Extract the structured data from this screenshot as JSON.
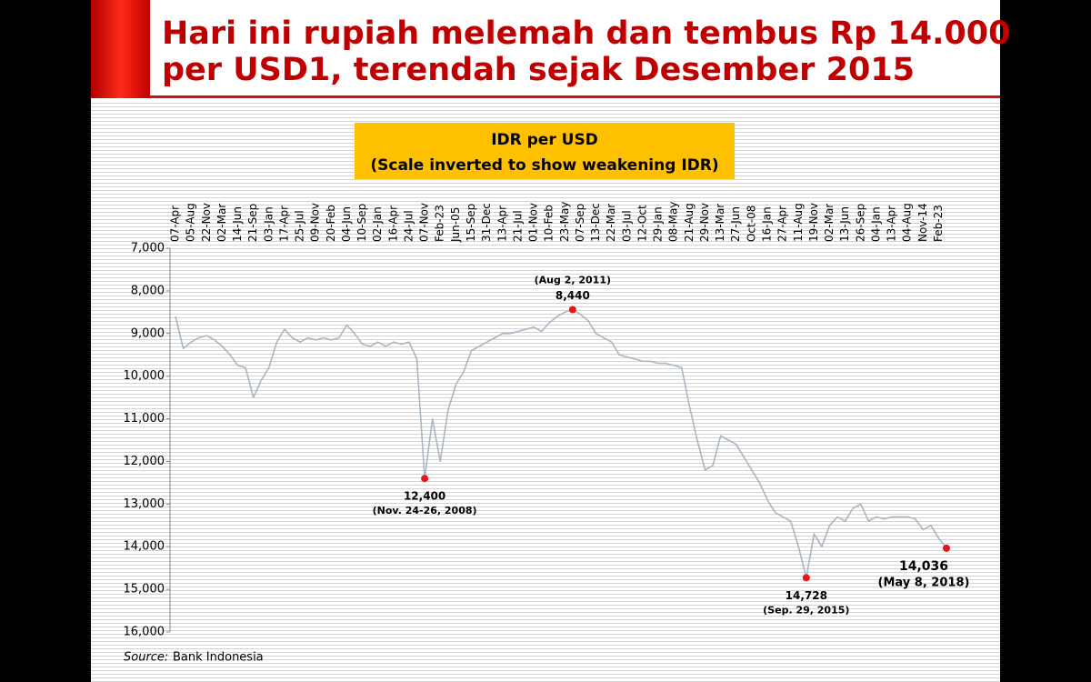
{
  "slide": {
    "title_lines": [
      "Hari ini rupiah melemah dan tembus Rp 14.000",
      "per USD1, terendah sejak Desember 2015"
    ]
  },
  "chart_data": {
    "type": "line",
    "title": "IDR per USD",
    "subtitle": "(Scale inverted to show weakening IDR)",
    "source": {
      "label": "Source:",
      "text": "Bank Indonesia"
    },
    "categories": [
      "07-Apr",
      null,
      "05-Aug",
      null,
      "22-Nov",
      null,
      "02-Mar",
      null,
      "14-Jun",
      null,
      "21-Sep",
      null,
      "03-Jan",
      null,
      "17-Apr",
      null,
      "25-Jul",
      null,
      "09-Nov",
      null,
      "20-Feb",
      null,
      "04-Jun",
      null,
      "10-Sep",
      null,
      "02-Jan",
      null,
      "16-Apr",
      null,
      "24-Jul",
      null,
      "07-Nov",
      null,
      "Feb-23",
      null,
      "Jun-05",
      null,
      "15-Sep",
      null,
      "31-Dec",
      null,
      "13-Apr",
      null,
      "21-Jul",
      null,
      "01-Nov",
      null,
      "10-Feb",
      null,
      "23-May",
      null,
      "07-Sep",
      null,
      "13-Dec",
      null,
      "22-Mar",
      null,
      "03-Jul",
      null,
      "12-Oct",
      null,
      "29-Jan",
      null,
      "08-May",
      null,
      "21-Aug",
      null,
      "29-Nov",
      null,
      "13-Mar",
      null,
      "27-Jun",
      null,
      "Oct-08",
      null,
      "16-Jan",
      null,
      "27-Apr",
      null,
      "11-Aug",
      null,
      "19-Nov",
      null,
      "02-Mar",
      null,
      "13-Jun",
      null,
      "26-Sep",
      null,
      "04-Jan",
      null,
      "13-Apr",
      null,
      "04-Aug",
      null,
      "Nov-14",
      null,
      "Feb-23",
      null
    ],
    "series": [
      {
        "name": "IDR per USD",
        "color": "#a9b6c4",
        "values": [
          8600,
          9350,
          9200,
          9100,
          9050,
          9150,
          9300,
          9500,
          9750,
          9800,
          10500,
          10100,
          9800,
          9200,
          8900,
          9100,
          9200,
          9100,
          9150,
          9100,
          9150,
          9100,
          8800,
          9000,
          9250,
          9300,
          9200,
          9300,
          9200,
          9250,
          9200,
          9600,
          12400,
          11000,
          12000,
          10800,
          10200,
          9900,
          9400,
          9300,
          9200,
          9100,
          9000,
          9000,
          8950,
          8900,
          8850,
          8950,
          8750,
          8600,
          8500,
          8440,
          8550,
          8700,
          9000,
          9100,
          9200,
          9500,
          9550,
          9600,
          9650,
          9650,
          9700,
          9700,
          9750,
          9800,
          10700,
          11500,
          12200,
          12100,
          11400,
          11500,
          11600,
          11900,
          12200,
          12500,
          12900,
          13200,
          13300,
          13400,
          14000,
          14728,
          13700,
          14000,
          13500,
          13300,
          13400,
          13100,
          13000,
          13400,
          13300,
          13350,
          13300,
          13300,
          13300,
          13350,
          13600,
          13500,
          13800,
          14036
        ]
      }
    ],
    "annotations": [
      {
        "value": 12400,
        "label": "12,400",
        "note": "(Nov. 24-26, 2008)"
      },
      {
        "value": 8440,
        "label": "8,440",
        "note": "(Aug 2, 2011)"
      },
      {
        "value": 14728,
        "label": "14,728",
        "note": "(Sep. 29, 2015)"
      },
      {
        "value": 14036,
        "label": "14,036",
        "note": "(May 8, 2018)"
      }
    ],
    "marker_color": "#e8141a",
    "ylim": [
      7000,
      16000
    ],
    "y_inverted": true,
    "yticks": [
      {
        "value": 7000,
        "label": "7,000"
      },
      {
        "value": 8000,
        "label": "8,000"
      },
      {
        "value": 9000,
        "label": "9,000"
      },
      {
        "value": 10000,
        "label": "10,000"
      },
      {
        "value": 11000,
        "label": "11,000"
      },
      {
        "value": 12000,
        "label": "12,000"
      },
      {
        "value": 13000,
        "label": "13,000"
      },
      {
        "value": 14000,
        "label": "14,000"
      },
      {
        "value": 15000,
        "label": "15,000"
      },
      {
        "value": 16000,
        "label": "16,000"
      }
    ],
    "grid": false
  }
}
